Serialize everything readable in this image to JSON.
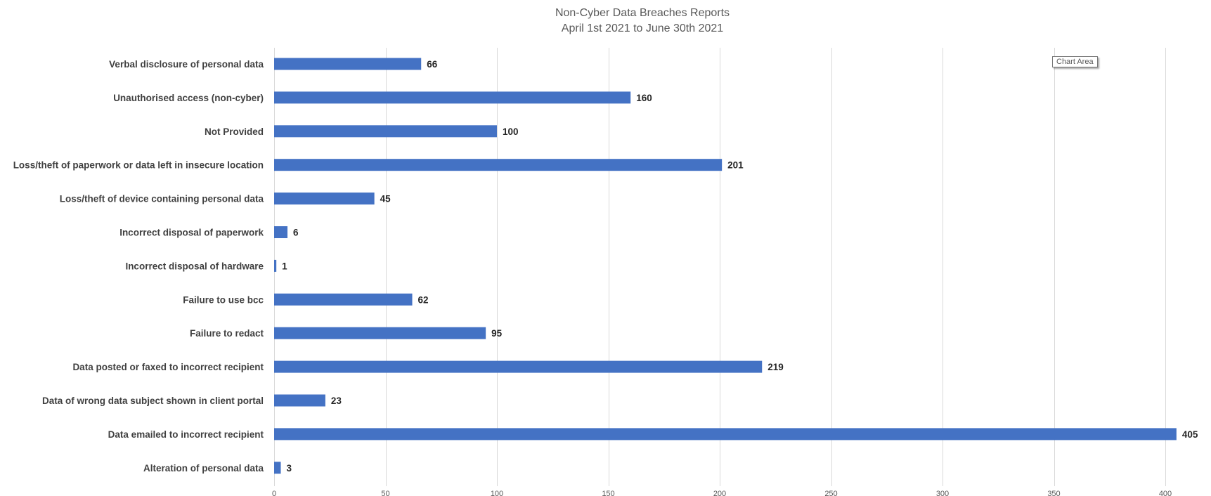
{
  "chart_data": {
    "type": "bar",
    "orientation": "horizontal",
    "title": "Non-Cyber Data Breaches Reports",
    "subtitle": "April 1st 2021 to June 30th 2021",
    "categories": [
      "Verbal disclosure of personal data",
      "Unauthorised access (non-cyber)",
      "Not Provided",
      "Loss/theft of paperwork or data left in insecure location",
      "Loss/theft of device containing personal data",
      "Incorrect disposal of paperwork",
      "Incorrect disposal of hardware",
      "Failure to use bcc",
      "Failure to redact",
      "Data posted or faxed to incorrect recipient",
      "Data of wrong data subject shown in client portal",
      "Data emailed to incorrect recipient",
      "Alteration of personal data"
    ],
    "values": [
      66,
      160,
      100,
      201,
      45,
      6,
      1,
      62,
      95,
      219,
      23,
      405,
      3
    ],
    "xlim": [
      0,
      400
    ],
    "x_ticks": [
      0,
      50,
      100,
      150,
      200,
      250,
      300,
      350,
      400
    ],
    "data_labels": true,
    "grid": true,
    "bar_color": "#4472c4"
  },
  "tooltip": {
    "text": "Chart Area"
  }
}
